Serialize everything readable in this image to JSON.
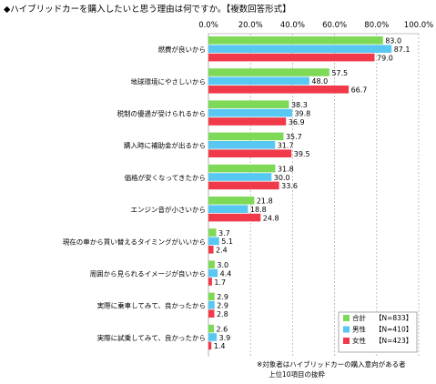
{
  "title": "◆ハイブリッドカーを購入したいと思う理由は何ですか。【複数回答形式】",
  "footnote_line1": "※対象者はハイブリッドカーの購入意向がある者",
  "footnote_line2": "上位10項目の抜粋",
  "colors": {
    "total": "#7ed957",
    "male": "#58c8f2",
    "female": "#f03a4a",
    "grid": "#b0b0b0"
  },
  "chart_data": {
    "type": "bar",
    "orientation": "horizontal",
    "xlim": [
      0,
      100
    ],
    "xticks": [
      "0.0%",
      "20.0%",
      "40.0%",
      "60.0%",
      "80.0%",
      "100.0%"
    ],
    "categories": [
      "燃費が良いから",
      "地球環境にやさしいから",
      "税制の優遇が受けられるから",
      "購入時に補助金が出るから",
      "価格が安くなってきたから",
      "エンジン音が小さいから",
      "現在の車から買い替えるタイミングがいいから",
      "周囲から見られるイメージが良いから",
      "実際に乗車してみて、良かったから",
      "実際に試乗してみて、良かったから"
    ],
    "series": [
      {
        "name": "合計",
        "n": "【N=833】",
        "color": "#7ed957",
        "values": [
          83.0,
          57.5,
          38.3,
          35.7,
          31.8,
          21.8,
          3.7,
          3.0,
          2.9,
          2.6
        ],
        "labels": [
          "83.0",
          "57.5",
          "38.3",
          "35.7",
          "31.8",
          "21.8",
          "3.7",
          "3.0",
          "2.9",
          "2.6"
        ]
      },
      {
        "name": "男性",
        "n": "【N=410】",
        "color": "#58c8f2",
        "values": [
          87.1,
          48.0,
          39.8,
          31.7,
          30.0,
          18.8,
          5.1,
          4.4,
          2.9,
          3.9
        ],
        "labels": [
          "87.1",
          "48.0",
          "39.8",
          "31.7",
          "30.0",
          "18.8",
          "5.1",
          "4.4",
          "2.9",
          "3.9"
        ]
      },
      {
        "name": "女性",
        "n": "【N=423】",
        "color": "#f03a4a",
        "values": [
          79.0,
          66.7,
          36.9,
          39.5,
          33.6,
          24.8,
          2.4,
          1.7,
          2.8,
          1.4
        ],
        "labels": [
          "79.0",
          "66.7",
          "36.9",
          "39.5",
          "33.6",
          "24.8",
          "2.4",
          "1.7",
          "2.8",
          "1.4"
        ]
      }
    ],
    "legend_position": "bottom-right",
    "grid": true
  }
}
